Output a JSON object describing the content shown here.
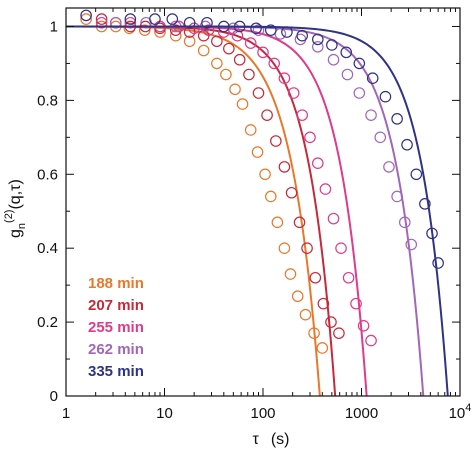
{
  "chart_data": {
    "type": "scatter",
    "x_scale": "log",
    "xlim": [
      1,
      10000
    ],
    "ylim": [
      0,
      1.05
    ],
    "xlabel": "τ (s)",
    "ylabel": "g_n^(2)(q,τ)",
    "ylabel_parts": {
      "base": "g",
      "sub": "n",
      "sup": "(2)",
      "args": "(q,τ)"
    },
    "xlabel_parts": {
      "symbol": "τ",
      "unit": "(s)"
    },
    "x_ticks": [
      {
        "value": 1,
        "base": "1",
        "exp": ""
      },
      {
        "value": 10,
        "base": "10",
        "exp": ""
      },
      {
        "value": 100,
        "base": "100",
        "exp": ""
      },
      {
        "value": 1000,
        "base": "1000",
        "exp": ""
      },
      {
        "value": 10000,
        "base": "10",
        "exp": "4"
      }
    ],
    "y_ticks": [
      "0",
      "0.2",
      "0.4",
      "0.6",
      "0.8",
      "1"
    ],
    "y_tick_values": [
      0,
      0.2,
      0.4,
      0.6,
      0.8,
      1.0
    ],
    "grid": false,
    "legend": {
      "placement": "lower-left"
    },
    "series": [
      {
        "name": "188 min",
        "color": "#e8782a",
        "fit_tau": 160,
        "fit_beta": 1.5,
        "points": [
          [
            1.6,
            1.02
          ],
          [
            2.3,
            1.0
          ],
          [
            3.2,
            1.0
          ],
          [
            4.4,
            0.995
          ],
          [
            6.3,
            0.99
          ],
          [
            9,
            0.985
          ],
          [
            13,
            0.975
          ],
          [
            18,
            0.96
          ],
          [
            25,
            0.935
          ],
          [
            34,
            0.9
          ],
          [
            42,
            0.87
          ],
          [
            52,
            0.83
          ],
          [
            62,
            0.79
          ],
          [
            75,
            0.72
          ],
          [
            88,
            0.66
          ],
          [
            105,
            0.6
          ],
          [
            120,
            0.54
          ],
          [
            140,
            0.47
          ],
          [
            165,
            0.4
          ],
          [
            190,
            0.33
          ],
          [
            225,
            0.27
          ],
          [
            270,
            0.22
          ],
          [
            330,
            0.17
          ],
          [
            400,
            0.13
          ]
        ]
      },
      {
        "name": "207 min",
        "color": "#c8283a",
        "fit_tau": 230,
        "fit_beta": 1.6,
        "points": [
          [
            2.3,
            1.02
          ],
          [
            3.2,
            1.01
          ],
          [
            4.5,
            1.0
          ],
          [
            6.4,
            1.0
          ],
          [
            9,
            0.995
          ],
          [
            13,
            0.99
          ],
          [
            18,
            0.985
          ],
          [
            25,
            0.975
          ],
          [
            34,
            0.96
          ],
          [
            45,
            0.94
          ],
          [
            58,
            0.91
          ],
          [
            72,
            0.87
          ],
          [
            90,
            0.82
          ],
          [
            110,
            0.76
          ],
          [
            135,
            0.69
          ],
          [
            165,
            0.62
          ],
          [
            195,
            0.55
          ],
          [
            235,
            0.47
          ],
          [
            280,
            0.4
          ],
          [
            340,
            0.32
          ],
          [
            410,
            0.25
          ],
          [
            490,
            0.2
          ],
          [
            590,
            0.17
          ]
        ]
      },
      {
        "name": "255 min",
        "color": "#e03a8a",
        "fit_tau": 480,
        "fit_beta": 1.6,
        "points": [
          [
            2.3,
            1.01
          ],
          [
            4.5,
            1.01
          ],
          [
            9,
            1.0
          ],
          [
            14,
            1.0
          ],
          [
            20,
            0.995
          ],
          [
            28,
            0.99
          ],
          [
            40,
            0.985
          ],
          [
            55,
            0.975
          ],
          [
            75,
            0.955
          ],
          [
            100,
            0.93
          ],
          [
            130,
            0.9
          ],
          [
            165,
            0.86
          ],
          [
            205,
            0.82
          ],
          [
            250,
            0.76
          ],
          [
            300,
            0.7
          ],
          [
            360,
            0.63
          ],
          [
            430,
            0.56
          ],
          [
            520,
            0.48
          ],
          [
            620,
            0.4
          ],
          [
            740,
            0.32
          ],
          [
            880,
            0.25
          ],
          [
            1050,
            0.19
          ],
          [
            1250,
            0.15
          ]
        ]
      },
      {
        "name": "262 min",
        "color": "#a267b8",
        "fit_tau": 1800,
        "fit_beta": 1.55,
        "points": [
          [
            3.2,
            1.01
          ],
          [
            6.5,
            1.01
          ],
          [
            13,
            1.0
          ],
          [
            26,
            1.0
          ],
          [
            50,
            0.995
          ],
          [
            90,
            0.99
          ],
          [
            150,
            0.98
          ],
          [
            240,
            0.965
          ],
          [
            360,
            0.945
          ],
          [
            520,
            0.91
          ],
          [
            720,
            0.87
          ],
          [
            950,
            0.82
          ],
          [
            1250,
            0.76
          ],
          [
            1550,
            0.7
          ],
          [
            1900,
            0.62
          ],
          [
            2300,
            0.54
          ],
          [
            2750,
            0.47
          ],
          [
            3200,
            0.41
          ]
        ]
      },
      {
        "name": "335 min",
        "color": "#2e3386",
        "fit_tau": 3200,
        "fit_beta": 1.6,
        "points": [
          [
            1.6,
            1.03
          ],
          [
            4.5,
            1.02
          ],
          [
            8,
            1.02
          ],
          [
            12,
            1.02
          ],
          [
            18,
            1.01
          ],
          [
            27,
            1.01
          ],
          [
            40,
            1.0
          ],
          [
            58,
            1.0
          ],
          [
            85,
            0.995
          ],
          [
            120,
            0.99
          ],
          [
            175,
            0.985
          ],
          [
            250,
            0.975
          ],
          [
            360,
            0.965
          ],
          [
            500,
            0.95
          ],
          [
            700,
            0.93
          ],
          [
            950,
            0.9
          ],
          [
            1300,
            0.86
          ],
          [
            1750,
            0.81
          ],
          [
            2300,
            0.75
          ],
          [
            2900,
            0.68
          ],
          [
            3600,
            0.6
          ],
          [
            4400,
            0.52
          ],
          [
            5200,
            0.44
          ],
          [
            6000,
            0.36
          ]
        ]
      }
    ]
  }
}
